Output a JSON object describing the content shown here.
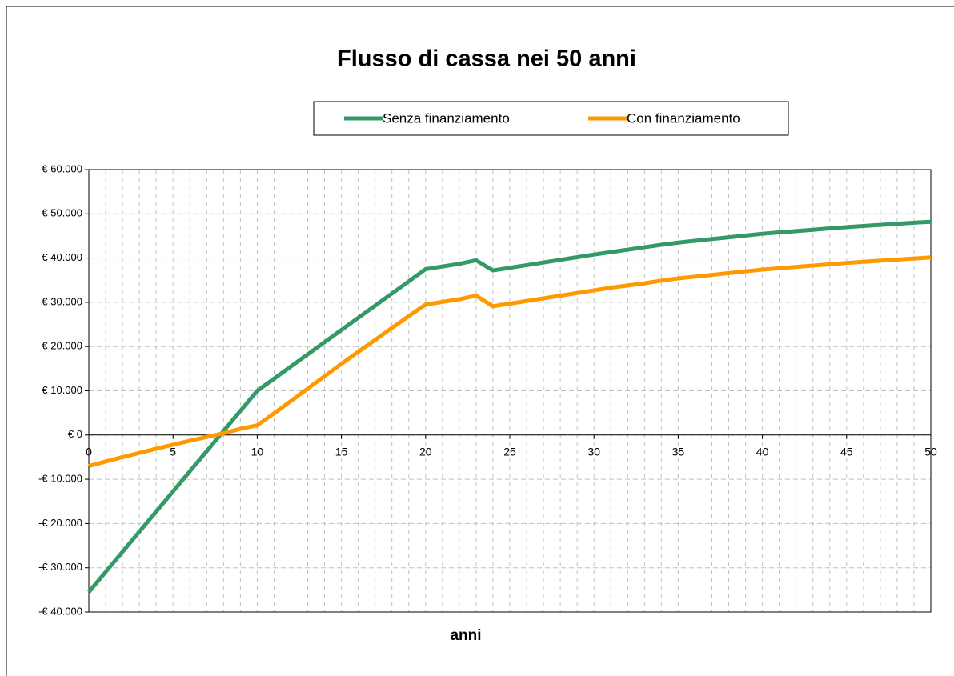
{
  "chart_data": {
    "type": "line",
    "title": "Flusso di cassa nei 50 anni",
    "xlabel": "anni",
    "x": [
      0,
      1,
      2,
      3,
      4,
      5,
      6,
      7,
      8,
      9,
      10,
      11,
      12,
      13,
      14,
      15,
      16,
      17,
      18,
      19,
      20,
      21,
      22,
      23,
      24,
      25,
      26,
      27,
      28,
      29,
      30,
      31,
      32,
      33,
      34,
      35,
      36,
      37,
      38,
      39,
      40,
      41,
      42,
      43,
      44,
      45,
      46,
      47,
      48,
      49,
      50
    ],
    "series": [
      {
        "name": "Senza finanziamento",
        "color": "#339966",
        "values": [
          -35500,
          -30950,
          -26400,
          -21850,
          -17300,
          -12750,
          -8200,
          -3650,
          900,
          5450,
          10000,
          12750,
          15500,
          18250,
          21000,
          23750,
          26500,
          29250,
          32000,
          34750,
          37500,
          38100,
          38700,
          39500,
          37200,
          37800,
          38400,
          39000,
          39600,
          40200,
          40800,
          41350,
          41900,
          42450,
          43000,
          43500,
          43900,
          44300,
          44700,
          45100,
          45500,
          45800,
          46100,
          46400,
          46700,
          47000,
          47250,
          47500,
          47750,
          48000,
          48200
        ]
      },
      {
        "name": "Con finanziamento",
        "color": "#ff9900",
        "values": [
          -7000,
          -6000,
          -5000,
          -4050,
          -3100,
          -2200,
          -1300,
          -450,
          400,
          1400,
          2200,
          4900,
          7700,
          10500,
          13300,
          16100,
          18800,
          21500,
          24200,
          26900,
          29500,
          30100,
          30700,
          31500,
          29100,
          29700,
          30300,
          30900,
          31500,
          32100,
          32700,
          33300,
          33800,
          34300,
          34900,
          35400,
          35800,
          36200,
          36600,
          37000,
          37400,
          37700,
          38000,
          38300,
          38600,
          38900,
          39150,
          39400,
          39650,
          39900,
          40150
        ]
      }
    ],
    "xlim": [
      0,
      50
    ],
    "xticks": [
      0,
      5,
      10,
      15,
      20,
      25,
      30,
      35,
      40,
      45,
      50
    ],
    "ylim": [
      -40000,
      60000
    ],
    "yticks": [
      {
        "value": -40000,
        "label": "-€ 40.000"
      },
      {
        "value": -30000,
        "label": "-€ 30.000"
      },
      {
        "value": -20000,
        "label": "-€ 20.000"
      },
      {
        "value": -10000,
        "label": "-€ 10.000"
      },
      {
        "value": 0,
        "label": "€ 0"
      },
      {
        "value": 10000,
        "label": "€ 10.000"
      },
      {
        "value": 20000,
        "label": "€ 20.000"
      },
      {
        "value": 30000,
        "label": "€ 30.000"
      },
      {
        "value": 40000,
        "label": "€ 40.000"
      },
      {
        "value": 50000,
        "label": "€ 50.000"
      },
      {
        "value": 60000,
        "label": "€ 60.000"
      }
    ],
    "grid": true,
    "legend": "top"
  }
}
